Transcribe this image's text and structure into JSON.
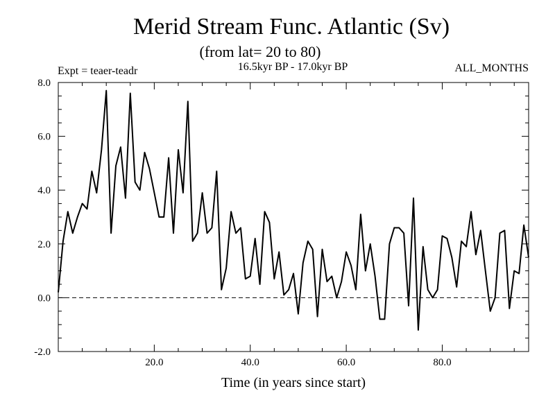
{
  "chart_data": {
    "type": "line",
    "title": "Merid Stream Func. Atlantic (Sv)",
    "subtitle": "(from lat= 20 to 80)",
    "experiment_label": "Expt = teaer-teadr",
    "period_label": "16.5kyr BP - 17.0kyr BP",
    "months_label": "ALL_MONTHS",
    "xlabel": "Time (in years since start)",
    "ylabel": "",
    "xlim": [
      0,
      98
    ],
    "ylim": [
      -2.0,
      8.0
    ],
    "x_ticks": [
      20,
      40,
      60,
      80
    ],
    "x_tick_labels": [
      "20.0",
      "40.0",
      "60.0",
      "80.0"
    ],
    "y_ticks": [
      -2,
      0,
      2,
      4,
      6,
      8
    ],
    "y_tick_labels": [
      "-2.0",
      "0.0",
      "2.0",
      "4.0",
      "6.0",
      "8.0"
    ],
    "reference_line": {
      "y": 0.0,
      "style": "dashed"
    },
    "series": [
      {
        "name": "Merid Stream Func.",
        "x": [
          0,
          1,
          2,
          3,
          4,
          5,
          6,
          7,
          8,
          9,
          10,
          11,
          12,
          13,
          14,
          15,
          16,
          17,
          18,
          19,
          20,
          21,
          22,
          23,
          24,
          25,
          26,
          27,
          28,
          29,
          30,
          31,
          32,
          33,
          34,
          35,
          36,
          37,
          38,
          39,
          40,
          41,
          42,
          43,
          44,
          45,
          46,
          47,
          48,
          49,
          50,
          51,
          52,
          53,
          54,
          55,
          56,
          57,
          58,
          59,
          60,
          61,
          62,
          63,
          64,
          65,
          66,
          67,
          68,
          69,
          70,
          71,
          72,
          73,
          74,
          75,
          76,
          77,
          78,
          79,
          80,
          81,
          82,
          83,
          84,
          85,
          86,
          87,
          88,
          89,
          90,
          91,
          92,
          93,
          94,
          95,
          96,
          97,
          98
        ],
        "values": [
          0.2,
          2.1,
          3.2,
          2.4,
          3.0,
          3.5,
          3.3,
          4.7,
          3.9,
          5.5,
          7.7,
          2.4,
          4.9,
          5.6,
          3.7,
          7.6,
          4.3,
          4.0,
          5.4,
          4.8,
          3.9,
          3.0,
          3.0,
          5.2,
          2.4,
          5.5,
          3.9,
          7.3,
          2.1,
          2.4,
          3.9,
          2.4,
          2.6,
          4.7,
          0.3,
          1.1,
          3.2,
          2.4,
          2.6,
          0.7,
          0.8,
          2.2,
          0.5,
          3.2,
          2.8,
          0.7,
          1.7,
          0.1,
          0.3,
          0.9,
          -0.6,
          1.3,
          2.1,
          1.8,
          -0.7,
          1.8,
          0.6,
          0.8,
          0.0,
          0.6,
          1.7,
          1.2,
          0.3,
          3.1,
          1.0,
          2.0,
          0.8,
          -0.8,
          -0.8,
          2.0,
          2.6,
          2.6,
          2.4,
          -0.3,
          3.7,
          -1.2,
          1.9,
          0.3,
          0.0,
          0.3,
          2.3,
          2.2,
          1.5,
          0.4,
          2.1,
          1.9,
          3.2,
          1.6,
          2.5,
          1.0,
          -0.5,
          0.0,
          2.4,
          2.5,
          -0.4,
          1.0,
          0.9,
          2.7,
          1.5
        ]
      }
    ]
  }
}
